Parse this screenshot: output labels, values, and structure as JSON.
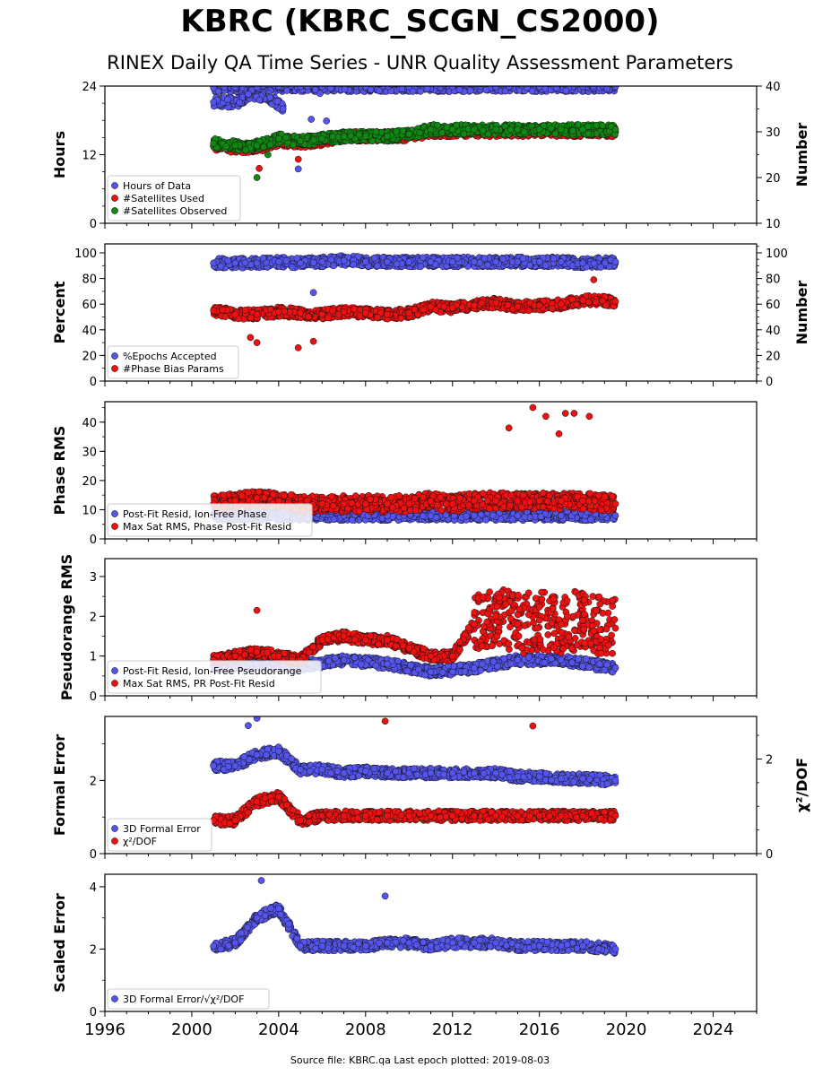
{
  "page": {
    "title": "KBRC (KBRC_SCGN_CS2000)",
    "subtitle": "RINEX Daily QA Time Series - UNR Quality Assessment Parameters",
    "footer": "Source file: KBRC.qa Last epoch plotted: 2019-08-03"
  },
  "colors": {
    "blue": "#5555ee",
    "red": "#ee1111",
    "green": "#118811",
    "edge": "#111111"
  },
  "chart_data": [
    {
      "type": "scatter",
      "ylabel": "Hours",
      "y2label": "Number",
      "ylim": [
        0,
        24
      ],
      "y2lim": [
        10,
        40
      ],
      "yticks": [
        "0",
        "12",
        "24"
      ],
      "y2ticks": [
        "10",
        "20",
        "30",
        "40"
      ],
      "xlim": [
        1996,
        2026
      ],
      "series": [
        {
          "name": "Hours of Data",
          "color": "blue",
          "axis": "left",
          "x": [
            2001.0,
            2001.5,
            2002.0,
            2003.0,
            2004.0,
            2005.0,
            2006.0,
            2008.0,
            2010.0,
            2012.0,
            2014.0,
            2016.0,
            2018.0,
            2019.5,
            2001.0,
            2002.2,
            2002.6,
            2003.6,
            2004.2,
            2005.5,
            2005.9,
            2006.2,
            2004.9
          ],
          "y": [
            23.7,
            23.8,
            23.8,
            23.8,
            23.9,
            23.9,
            23.9,
            23.9,
            23.9,
            23.9,
            23.9,
            23.9,
            23.9,
            23.9,
            21.2,
            21.1,
            22.6,
            22.0,
            20.0,
            18.2,
            22.7,
            17.9,
            9.5
          ]
        },
        {
          "name": "#Satellites Used",
          "color": "red",
          "axis": "right",
          "x": [
            2001.0,
            2002.0,
            2003.0,
            2004.0,
            2005.0,
            2006.0,
            2007.0,
            2008.0,
            2009.0,
            2010.0,
            2011.0,
            2012.0,
            2013.0,
            2014.0,
            2015.0,
            2016.0,
            2017.0,
            2018.0,
            2019.5,
            2003.1,
            2004.9
          ],
          "y": [
            27,
            26.5,
            26.5,
            28,
            27.5,
            28,
            29,
            29,
            29,
            29,
            30,
            30,
            30,
            30,
            30,
            30,
            30,
            30,
            30,
            22,
            24
          ]
        },
        {
          "name": "#Satellites Observed",
          "color": "green",
          "axis": "right",
          "x": [
            2001.0,
            2002.0,
            2003.0,
            2004.0,
            2005.0,
            2006.0,
            2007.0,
            2008.0,
            2009.0,
            2010.0,
            2011.0,
            2012.0,
            2013.0,
            2014.0,
            2015.0,
            2016.0,
            2017.0,
            2018.0,
            2019.5,
            2003.0,
            2003.5
          ],
          "y": [
            27.5,
            27,
            27,
            28.5,
            28,
            28.5,
            29,
            29,
            29,
            29.5,
            30.5,
            30.5,
            30.5,
            30.5,
            30.5,
            30.5,
            30.5,
            30.5,
            30.5,
            20,
            25
          ]
        }
      ]
    },
    {
      "type": "scatter",
      "ylabel": "Percent",
      "y2label": "Number",
      "ylim": [
        0,
        107
      ],
      "y2lim": [
        0,
        107
      ],
      "yticks": [
        "0",
        "20",
        "40",
        "60",
        "80",
        "100"
      ],
      "y2ticks": [
        "0",
        "20",
        "40",
        "60",
        "80",
        "100"
      ],
      "xlim": [
        1996,
        2026
      ],
      "series": [
        {
          "name": "%Epochs Accepted",
          "color": "blue",
          "axis": "left",
          "x": [
            2001.0,
            2002.0,
            2003.0,
            2004.0,
            2005.0,
            2006.0,
            2007.0,
            2008.0,
            2009.0,
            2010.0,
            2011.0,
            2012.0,
            2013.0,
            2014.0,
            2015.0,
            2016.0,
            2017.0,
            2018.0,
            2019.5,
            2005.6
          ],
          "y": [
            92,
            92,
            92,
            93,
            92,
            93,
            94,
            93,
            93,
            93,
            93,
            93,
            93,
            93,
            93,
            93,
            93,
            92,
            93,
            69
          ]
        },
        {
          "name": "#Phase Bias Params",
          "color": "red",
          "axis": "right",
          "x": [
            2001.0,
            2002.0,
            2003.0,
            2004.0,
            2005.0,
            2006.0,
            2007.0,
            2008.0,
            2009.0,
            2010.0,
            2011.0,
            2012.0,
            2013.0,
            2014.0,
            2015.0,
            2016.0,
            2017.0,
            2018.0,
            2019.5,
            2002.7,
            2003.0,
            2004.9,
            2005.6,
            2018.5
          ],
          "y": [
            55,
            52,
            52,
            54,
            53,
            52,
            54,
            53,
            52,
            53,
            58,
            57,
            59,
            61,
            58,
            59,
            60,
            63,
            62,
            34,
            30,
            26,
            31,
            79
          ]
        }
      ]
    },
    {
      "type": "scatter",
      "ylabel": "Phase RMS",
      "ylim": [
        0,
        47
      ],
      "yticks": [
        "0",
        "10",
        "20",
        "30",
        "40"
      ],
      "xlim": [
        1996,
        2026
      ],
      "series": [
        {
          "name": "Post-Fit Resid, Ion-Free Phase",
          "color": "blue",
          "axis": "left",
          "x": [
            2001.0,
            2003.0,
            2005.0,
            2007.0,
            2009.0,
            2011.0,
            2013.0,
            2015.0,
            2017.0,
            2019.5
          ],
          "y": [
            8,
            8,
            8,
            8,
            8,
            8,
            8,
            8,
            8,
            8
          ]
        },
        {
          "name": "Max Sat RMS, Phase Post-Fit Resid",
          "color": "red",
          "axis": "left",
          "x": [
            2001.0,
            2002.0,
            2003.0,
            2004.0,
            2005.0,
            2006.0,
            2007.0,
            2008.0,
            2009.0,
            2010.0,
            2011.0,
            2012.0,
            2013.0,
            2014.0,
            2015.0,
            2016.0,
            2017.0,
            2018.0,
            2019.5,
            2014.6,
            2015.7,
            2016.3,
            2016.9,
            2017.2,
            2017.6,
            2018.3
          ],
          "y": [
            12,
            13,
            14,
            13,
            12,
            12,
            12,
            12,
            12,
            12,
            13,
            12,
            13,
            13,
            13,
            13,
            13,
            13,
            12,
            38,
            45,
            42,
            36,
            43,
            43,
            42
          ]
        }
      ]
    },
    {
      "type": "scatter",
      "ylabel": "Pseudorange RMS",
      "ylim": [
        0,
        3.45
      ],
      "yticks": [
        "0",
        "1",
        "2",
        "3"
      ],
      "xlim": [
        1996,
        2026
      ],
      "series": [
        {
          "name": "Post-Fit Resid, Ion-Free Pseudorange",
          "color": "blue",
          "axis": "left",
          "x": [
            2001.0,
            2003.0,
            2005.0,
            2007.0,
            2009.0,
            2011.0,
            2013.0,
            2015.0,
            2017.0,
            2019.5
          ],
          "y": [
            0.75,
            0.8,
            0.75,
            0.9,
            0.8,
            0.6,
            0.7,
            0.9,
            0.9,
            0.7
          ]
        },
        {
          "name": "Max Sat RMS, PR Post-Fit Resid",
          "color": "red",
          "axis": "left",
          "x": [
            2001.0,
            2002.0,
            2003.0,
            2004.0,
            2005.0,
            2006.0,
            2007.0,
            2008.0,
            2009.0,
            2010.0,
            2011.0,
            2012.0,
            2013.0,
            2014.0,
            2015.0,
            2016.0,
            2017.0,
            2018.0,
            2019.5,
            2003.0
          ],
          "y": [
            0.9,
            1.0,
            1.1,
            1.0,
            0.9,
            1.4,
            1.5,
            1.4,
            1.4,
            1.2,
            1.0,
            1.0,
            1.8,
            2.0,
            1.8,
            1.9,
            1.8,
            1.9,
            1.7,
            2.15
          ]
        }
      ]
    },
    {
      "type": "scatter",
      "ylabel": "Formal Error",
      "y2label": "χ²/DOF",
      "ylim": [
        0,
        3.75
      ],
      "y2lim": [
        0,
        2.9
      ],
      "yticks": [
        "0",
        "2"
      ],
      "y2ticks": [
        "0",
        "2"
      ],
      "xlim": [
        1996,
        2026
      ],
      "series": [
        {
          "name": "3D Formal Error",
          "color": "blue",
          "axis": "left",
          "x": [
            2001.0,
            2002.0,
            2003.0,
            2004.0,
            2005.0,
            2006.0,
            2007.0,
            2008.0,
            2009.0,
            2010.0,
            2011.0,
            2012.0,
            2013.0,
            2014.0,
            2015.0,
            2016.0,
            2017.0,
            2018.0,
            2019.5,
            2003.0,
            2002.6
          ],
          "y": [
            2.4,
            2.4,
            2.7,
            2.8,
            2.3,
            2.3,
            2.2,
            2.25,
            2.2,
            2.2,
            2.2,
            2.2,
            2.2,
            2.2,
            2.1,
            2.1,
            2.05,
            2.05,
            2.0,
            3.7,
            3.5
          ]
        },
        {
          "name": "χ²/DOF",
          "color": "red",
          "axis": "right",
          "x": [
            2001.0,
            2002.0,
            2003.0,
            2004.0,
            2005.0,
            2006.0,
            2007.0,
            2008.0,
            2009.0,
            2010.0,
            2011.0,
            2012.0,
            2013.0,
            2014.0,
            2015.0,
            2016.0,
            2017.0,
            2018.0,
            2019.5,
            2008.9,
            2015.7
          ],
          "y": [
            0.7,
            0.7,
            1.1,
            1.2,
            0.7,
            0.8,
            0.8,
            0.8,
            0.8,
            0.8,
            0.8,
            0.8,
            0.8,
            0.8,
            0.8,
            0.8,
            0.8,
            0.8,
            0.8,
            2.8,
            2.7
          ]
        }
      ]
    },
    {
      "type": "scatter",
      "ylabel": "Scaled Error",
      "ylim": [
        0,
        4.4
      ],
      "yticks": [
        "0",
        "2",
        "4"
      ],
      "xlim": [
        1996,
        2026
      ],
      "xticks": [
        "1996",
        "2000",
        "2004",
        "2008",
        "2012",
        "2016",
        "2020",
        "2024"
      ],
      "series": [
        {
          "name": "3D Formal Error/√χ²/DOF",
          "color": "blue",
          "axis": "left",
          "x": [
            2001.0,
            2002.0,
            2003.0,
            2004.0,
            2005.0,
            2006.0,
            2007.0,
            2008.0,
            2009.0,
            2010.0,
            2011.0,
            2012.0,
            2013.0,
            2014.0,
            2015.0,
            2016.0,
            2017.0,
            2018.0,
            2019.5,
            2003.2,
            2008.9
          ],
          "y": [
            2.1,
            2.2,
            3.0,
            3.3,
            2.1,
            2.1,
            2.1,
            2.1,
            2.2,
            2.2,
            2.1,
            2.2,
            2.2,
            2.2,
            2.1,
            2.1,
            2.1,
            2.1,
            2.0,
            4.2,
            3.7
          ]
        }
      ]
    }
  ]
}
